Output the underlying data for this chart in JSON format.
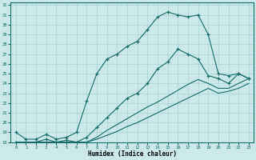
{
  "xlabel": "Humidex (Indice chaleur)",
  "bg_color": "#cce8e8",
  "line_color": "#1a6b6b",
  "xlim": [
    -0.5,
    23.5
  ],
  "ylim": [
    18,
    32.3
  ],
  "yticks": [
    18,
    19,
    20,
    21,
    22,
    23,
    24,
    25,
    26,
    27,
    28,
    29,
    30,
    31,
    32
  ],
  "xticks": [
    0,
    1,
    2,
    3,
    4,
    5,
    6,
    7,
    8,
    9,
    10,
    11,
    12,
    13,
    14,
    15,
    16,
    17,
    18,
    19,
    20,
    21,
    22,
    23
  ],
  "line_max": [
    19.0,
    18.3,
    18.3,
    18.8,
    18.3,
    18.5,
    19.0,
    22.2,
    25.0,
    26.5,
    27.0,
    27.8,
    28.3,
    29.5,
    30.8,
    31.3,
    31.0,
    30.8,
    31.0,
    29.0,
    25.0,
    24.8,
    25.0,
    24.5
  ],
  "line_mean": [
    18.0,
    18.0,
    18.0,
    18.3,
    18.0,
    18.2,
    18.0,
    18.5,
    19.5,
    20.5,
    21.5,
    22.5,
    23.0,
    24.0,
    25.5,
    26.2,
    27.5,
    27.0,
    26.5,
    24.8,
    24.5,
    24.0,
    25.0,
    24.5
  ],
  "line_min1": [
    18.0,
    18.0,
    18.0,
    18.0,
    18.0,
    18.0,
    18.0,
    18.0,
    18.5,
    19.2,
    19.8,
    20.4,
    21.0,
    21.6,
    22.1,
    22.7,
    23.3,
    23.9,
    24.4,
    24.0,
    23.5,
    23.5,
    24.0,
    24.5
  ],
  "line_min2": [
    18.0,
    18.0,
    18.0,
    18.0,
    18.0,
    18.0,
    18.0,
    18.0,
    18.3,
    18.7,
    19.1,
    19.6,
    20.0,
    20.5,
    21.0,
    21.5,
    22.0,
    22.5,
    23.0,
    23.5,
    23.0,
    23.2,
    23.5,
    24.0
  ]
}
